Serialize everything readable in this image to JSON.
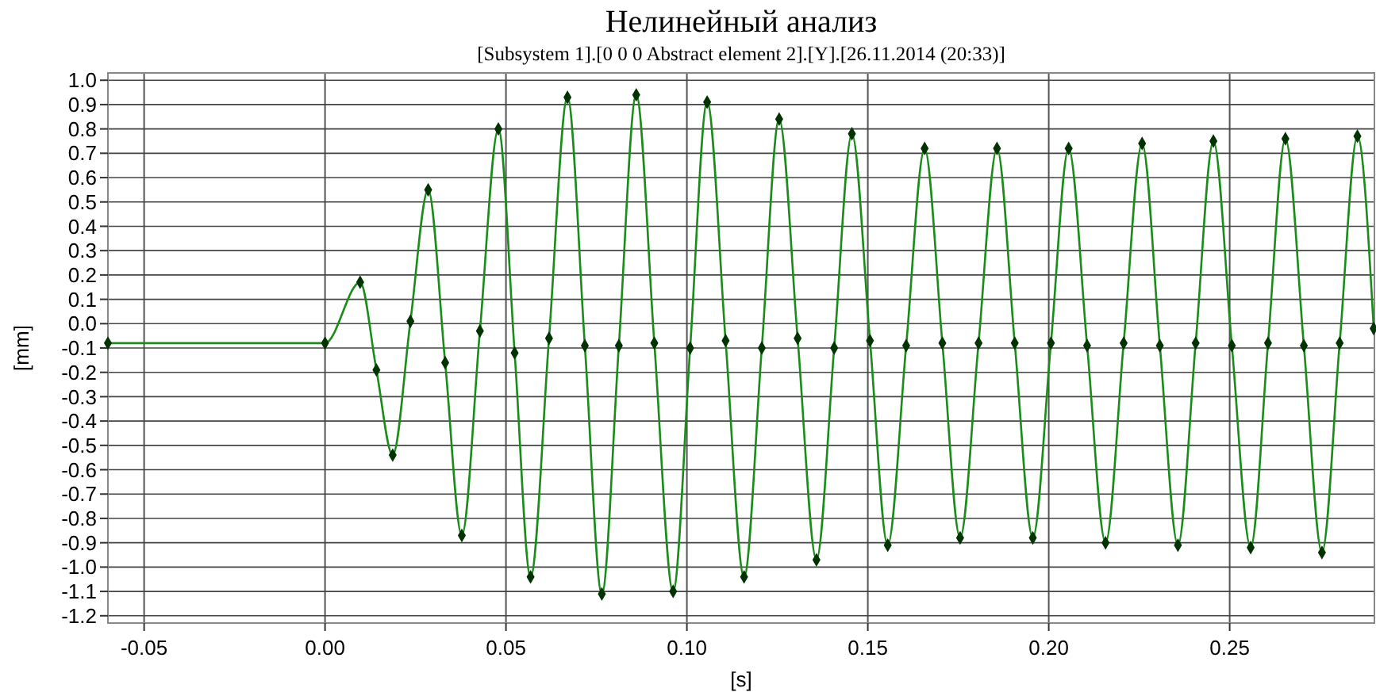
{
  "chart_data": {
    "type": "line",
    "title": "Нелинейный анализ",
    "subtitle": "[Subsystem 1].[0 0 0 Abstract element 2].[Y].[26.11.2014 (20:33)]",
    "xlabel": "[s]",
    "ylabel": "[mm]",
    "x": [
      -0.06,
      0.0,
      0.0097,
      0.0142,
      0.0187,
      0.0236,
      0.0285,
      0.0332,
      0.0378,
      0.0428,
      0.0479,
      0.0524,
      0.0568,
      0.0619,
      0.067,
      0.0718,
      0.0765,
      0.0812,
      0.086,
      0.091,
      0.0962,
      0.1009,
      0.1056,
      0.1107,
      0.1158,
      0.1207,
      0.1255,
      0.1306,
      0.1358,
      0.1407,
      0.1456,
      0.1506,
      0.1555,
      0.1606,
      0.1657,
      0.1706,
      0.1755,
      0.1806,
      0.1857,
      0.1906,
      0.1956,
      0.2006,
      0.2055,
      0.2106,
      0.2157,
      0.2207,
      0.2258,
      0.2307,
      0.2357,
      0.2406,
      0.2455,
      0.2506,
      0.2558,
      0.2606,
      0.2654,
      0.2705,
      0.2755,
      0.2804,
      0.2853,
      0.2898
    ],
    "series": [
      {
        "color": "#1a8c1a",
        "values": [
          -0.08,
          -0.08,
          0.17,
          -0.19,
          -0.54,
          0.01,
          0.55,
          -0.16,
          -0.87,
          -0.03,
          0.8,
          -0.12,
          -1.04,
          -0.06,
          0.93,
          -0.09,
          -1.11,
          -0.09,
          0.94,
          -0.08,
          -1.1,
          -0.1,
          0.91,
          -0.07,
          -1.04,
          -0.1,
          0.84,
          -0.06,
          -0.97,
          -0.1,
          0.78,
          -0.07,
          -0.91,
          -0.09,
          0.72,
          -0.08,
          -0.88,
          -0.08,
          0.72,
          -0.08,
          -0.88,
          -0.08,
          0.72,
          -0.09,
          -0.9,
          -0.08,
          0.74,
          -0.09,
          -0.91,
          -0.08,
          0.75,
          -0.09,
          -0.92,
          -0.08,
          0.76,
          -0.09,
          -0.94,
          -0.08,
          0.77,
          -0.02
        ]
      }
    ],
    "xlim": [
      -0.06,
      0.29
    ],
    "xticks": [
      -0.05,
      {
        "value": 0,
        "label": "0.00"
      },
      {
        "value": 0.05,
        "label": "0.05"
      },
      {
        "value": 0.1,
        "label": "0.10"
      },
      0.15,
      {
        "value": 0.2,
        "label": "0.20"
      },
      0.25
    ],
    "ylim": [
      -1.23,
      1.03
    ],
    "yticks": [
      {
        "value": 1,
        "label": "1.0"
      },
      0.9,
      0.8,
      0.7,
      0.6,
      0.5,
      0.4,
      0.3,
      0.2,
      0.1,
      {
        "value": 0,
        "label": "0.0"
      },
      -0.1,
      -0.2,
      -0.3,
      -0.4,
      -0.5,
      -0.6,
      -0.7,
      -0.8,
      -0.9,
      {
        "value": -1,
        "label": "-1.0"
      },
      -1.1,
      -1.2
    ],
    "grid": true,
    "marker": "diamond",
    "line_style": "solid"
  }
}
